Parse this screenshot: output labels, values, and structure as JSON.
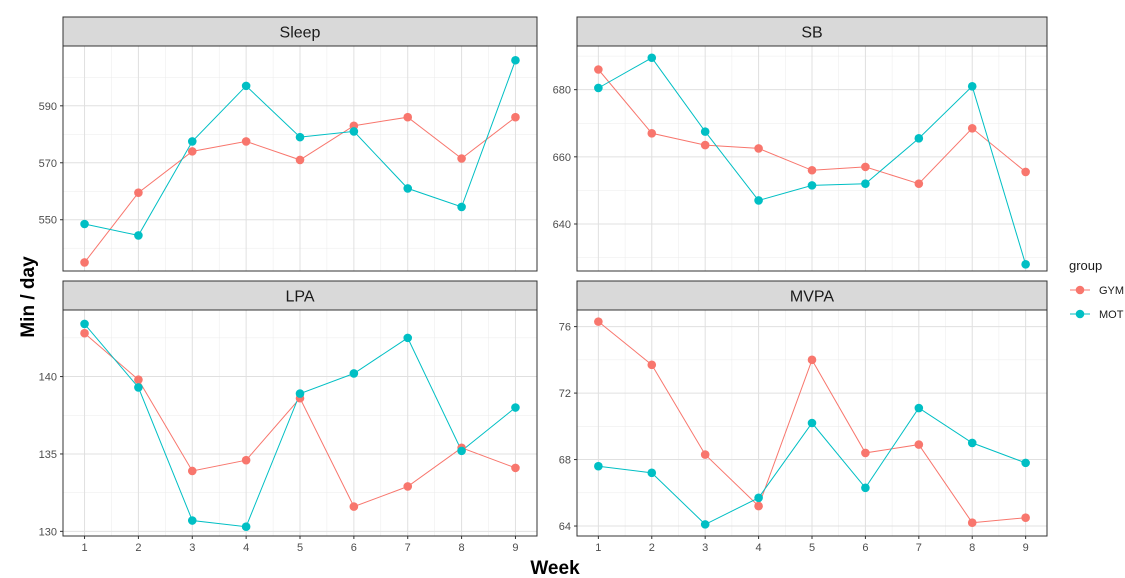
{
  "figure": {
    "xlabel": "Week",
    "ylabel": "Min / day",
    "legend": {
      "title": "group",
      "position": "right",
      "entries": [
        {
          "label": "GYM",
          "color": "#F8766D"
        },
        {
          "label": "MOT",
          "color": "#00BFC4"
        }
      ]
    }
  },
  "chart_data": [
    {
      "type": "line",
      "title": "Sleep",
      "x": [
        1,
        2,
        3,
        4,
        5,
        6,
        7,
        8,
        9
      ],
      "ylim": [
        532,
        611
      ],
      "yticks": [
        550,
        570,
        590
      ],
      "grid": true,
      "series": [
        {
          "name": "GYM",
          "color": "#F8766D",
          "values": [
            535,
            559.5,
            574,
            577.5,
            571,
            583,
            586,
            571.5,
            586
          ]
        },
        {
          "name": "MOT",
          "color": "#00BFC4",
          "values": [
            548.5,
            544.5,
            577.5,
            597,
            579,
            581,
            561,
            554.5,
            606
          ]
        }
      ]
    },
    {
      "type": "line",
      "title": "SB",
      "x": [
        1,
        2,
        3,
        4,
        5,
        6,
        7,
        8,
        9
      ],
      "ylim": [
        626,
        693
      ],
      "yticks": [
        640,
        660,
        680
      ],
      "grid": true,
      "series": [
        {
          "name": "GYM",
          "color": "#F8766D",
          "values": [
            686,
            667,
            663.5,
            662.5,
            656,
            657,
            652,
            668.5,
            655.5
          ]
        },
        {
          "name": "MOT",
          "color": "#00BFC4",
          "values": [
            680.5,
            689.5,
            667.5,
            647,
            651.5,
            652,
            665.5,
            681,
            628
          ]
        }
      ]
    },
    {
      "type": "line",
      "title": "LPA",
      "x": [
        1,
        2,
        3,
        4,
        5,
        6,
        7,
        8,
        9
      ],
      "ylim": [
        129.7,
        144.3
      ],
      "yticks": [
        130,
        135,
        140
      ],
      "grid": true,
      "series": [
        {
          "name": "GYM",
          "color": "#F8766D",
          "values": [
            142.8,
            139.8,
            133.9,
            134.6,
            138.6,
            131.6,
            132.9,
            135.4,
            134.1
          ]
        },
        {
          "name": "MOT",
          "color": "#00BFC4",
          "values": [
            143.4,
            139.3,
            130.7,
            130.3,
            138.9,
            140.2,
            142.5,
            135.2,
            138.0
          ]
        }
      ]
    },
    {
      "type": "line",
      "title": "MVPA",
      "x": [
        1,
        2,
        3,
        4,
        5,
        6,
        7,
        8,
        9
      ],
      "ylim": [
        63.4,
        77.0
      ],
      "yticks": [
        64,
        68,
        72,
        76
      ],
      "grid": true,
      "series": [
        {
          "name": "GYM",
          "color": "#F8766D",
          "values": [
            76.3,
            73.7,
            68.3,
            65.2,
            74.0,
            68.4,
            68.9,
            64.2,
            64.5
          ]
        },
        {
          "name": "MOT",
          "color": "#00BFC4",
          "values": [
            67.6,
            67.2,
            64.1,
            65.7,
            70.2,
            66.3,
            71.1,
            69.0,
            67.8
          ]
        }
      ]
    }
  ]
}
